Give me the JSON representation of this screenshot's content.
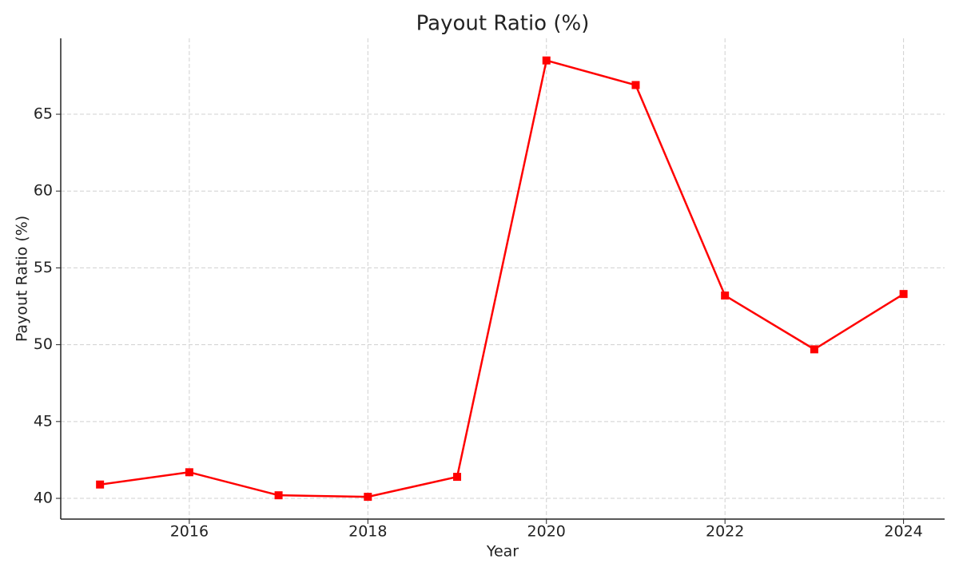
{
  "chart_data": {
    "type": "line",
    "title": "Payout Ratio (%)",
    "x_label": "Year",
    "y_label": "Payout Ratio (%)",
    "x": [
      2015,
      2016,
      2017,
      2018,
      2019,
      2020,
      2021,
      2022,
      2023,
      2024
    ],
    "series": [
      {
        "name": "Payout Ratio (%)",
        "color": "#ff0000",
        "values": [
          40.9,
          41.7,
          40.2,
          40.1,
          41.4,
          68.5,
          66.9,
          53.2,
          49.7,
          53.3
        ]
      }
    ],
    "xlim": [
      2014.56,
      2024.46
    ],
    "xticks": [
      2016,
      2018,
      2020,
      2022,
      2024
    ],
    "ylim": [
      38.65,
      69.94
    ],
    "yticks": [
      40,
      45,
      50,
      55,
      60,
      65
    ],
    "grid": true
  }
}
